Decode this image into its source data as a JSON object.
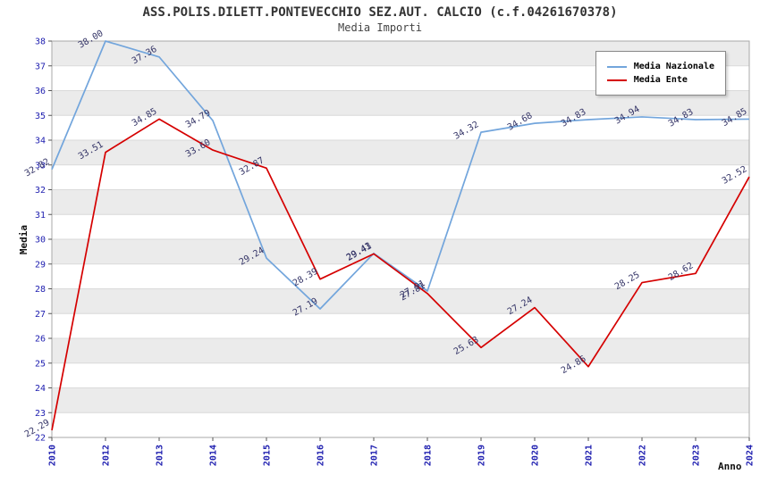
{
  "chart_data": {
    "type": "line",
    "title": "ASS.POLIS.DILETT.PONTEVECCHIO SEZ.AUT. CALCIO (c.f.04261670378)",
    "subtitle": "Media Importi",
    "xlabel": "Anno",
    "ylabel": "Media",
    "ylim": [
      22,
      38
    ],
    "ytick_step": 1,
    "grid": "horizontal-bands",
    "legend_position": "top-right",
    "categories": [
      "2010",
      "2012",
      "2013",
      "2014",
      "2015",
      "2016",
      "2017",
      "2018",
      "2019",
      "2020",
      "2021",
      "2022",
      "2023",
      "2024"
    ],
    "series": [
      {
        "name": "Media Nazionale",
        "color": "#72a5dc",
        "values": [
          32.82,
          38.0,
          37.36,
          34.79,
          29.24,
          27.19,
          29.43,
          27.91,
          34.32,
          34.68,
          34.83,
          34.94,
          34.83,
          34.85
        ]
      },
      {
        "name": "Media Ente",
        "color": "#d50000",
        "values": [
          22.29,
          33.51,
          34.85,
          33.6,
          32.87,
          28.39,
          29.41,
          27.81,
          25.63,
          27.24,
          24.86,
          28.25,
          28.62,
          32.52
        ]
      }
    ],
    "colors": {
      "tick_label": "#2020b0",
      "data_label": "#333366",
      "band": "#ebebeb",
      "grid": "#dadada",
      "plot_border": "#aaaaaa",
      "axis_tick": "#555555"
    }
  }
}
